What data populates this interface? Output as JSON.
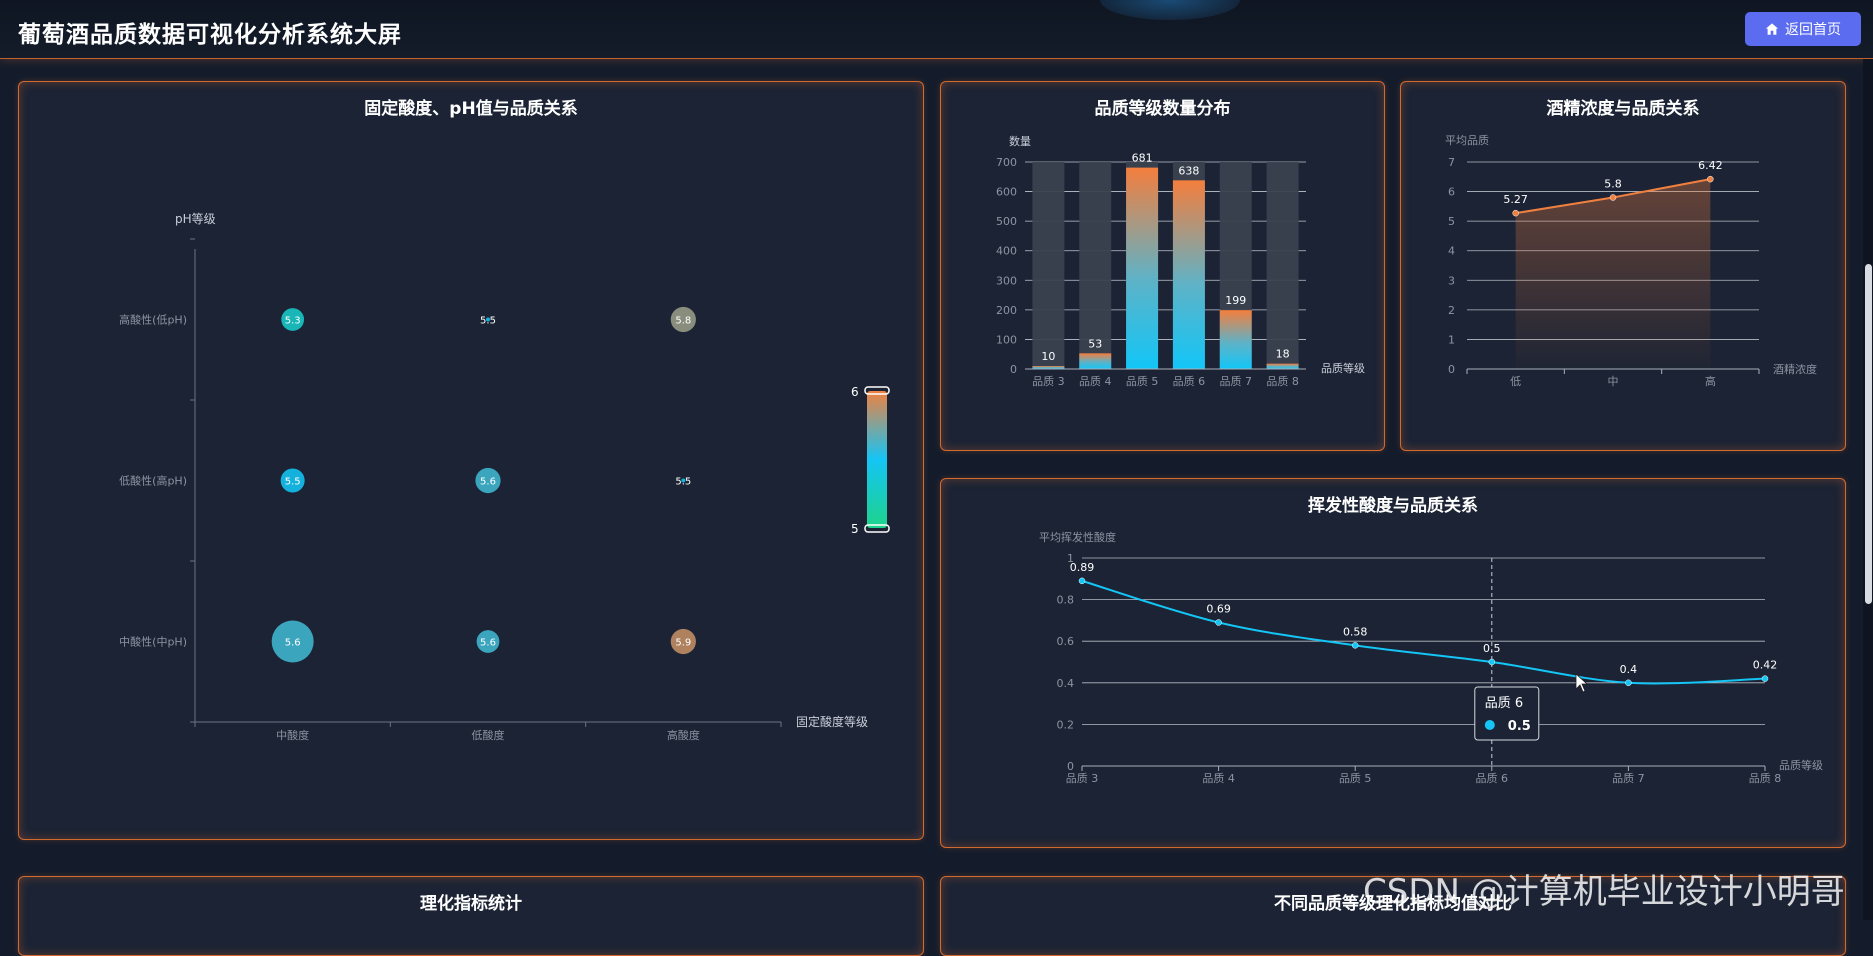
{
  "header": {
    "title": "葡萄酒品质数据可视化分析系统大屏",
    "home_button": "返回首页"
  },
  "panels": {
    "scatter": {
      "title": "固定酸度、pH值与品质关系"
    },
    "bar": {
      "title": "品质等级数量分布"
    },
    "alcohol": {
      "title": "酒精浓度与品质关系"
    },
    "volatile": {
      "title": "挥发性酸度与品质关系"
    },
    "stats": {
      "title": "理化指标统计"
    },
    "compare": {
      "title": "不同品质等级理化指标均值对比"
    }
  },
  "watermark": "CSDN @计算机毕业设计小明哥",
  "chart_data": [
    {
      "id": "scatter",
      "type": "scatter",
      "ylabel": "pH等级",
      "xlabel": "固定酸度等级",
      "x_categories": [
        "中酸度",
        "低酸度",
        "高酸度"
      ],
      "y_categories": [
        "中酸性(中pH)",
        "低酸性(高pH)",
        "高酸性(低pH)"
      ],
      "points": [
        {
          "x": "中酸度",
          "y": "高酸性(低pH)",
          "value": 5.3,
          "size": 2
        },
        {
          "x": "低酸度",
          "y": "高酸性(低pH)",
          "value": 5.5,
          "size": 0
        },
        {
          "x": "高酸度",
          "y": "高酸性(低pH)",
          "value": 5.8,
          "size": 3
        },
        {
          "x": "中酸度",
          "y": "低酸性(高pH)",
          "value": 5.5,
          "size": 2.5
        },
        {
          "x": "低酸度",
          "y": "低酸性(高pH)",
          "value": 5.6,
          "size": 3
        },
        {
          "x": "高酸度",
          "y": "低酸性(高pH)",
          "value": 5.5,
          "size": 0
        },
        {
          "x": "中酸度",
          "y": "中酸性(中pH)",
          "value": 5.6,
          "size": 10
        },
        {
          "x": "低酸度",
          "y": "中酸性(中pH)",
          "value": 5.6,
          "size": 2
        },
        {
          "x": "高酸度",
          "y": "中酸性(中pH)",
          "value": 5.9,
          "size": 3
        }
      ],
      "visual_map": {
        "min": 5,
        "max": 6,
        "min_label": "5",
        "max_label": "6",
        "colors": [
          "#1ed38a",
          "#14c5f5",
          "#f08040"
        ]
      }
    },
    {
      "id": "bar",
      "type": "bar",
      "ylabel": "数量",
      "xlabel": "品质等级",
      "categories": [
        "品质 3",
        "品质 4",
        "品质 5",
        "品质 6",
        "品质 7",
        "品质 8"
      ],
      "values": [
        10,
        53,
        681,
        638,
        199,
        18
      ],
      "ylim": [
        0,
        700
      ],
      "yticks": [
        0,
        100,
        200,
        300,
        400,
        500,
        600,
        700
      ],
      "grid": true
    },
    {
      "id": "alcohol",
      "type": "area",
      "ylabel": "平均品质",
      "xlabel": "酒精浓度",
      "categories": [
        "低",
        "中",
        "高"
      ],
      "values": [
        5.27,
        5.8,
        6.42
      ],
      "ylim": [
        0,
        7
      ],
      "yticks": [
        0,
        1,
        2,
        3,
        4,
        5,
        6,
        7
      ],
      "grid": true
    },
    {
      "id": "volatile",
      "type": "line",
      "ylabel": "平均挥发性酸度",
      "xlabel": "品质等级",
      "categories": [
        "品质 3",
        "品质 4",
        "品质 5",
        "品质 6",
        "品质 7",
        "品质 8"
      ],
      "values": [
        0.89,
        0.69,
        0.58,
        0.5,
        0.4,
        0.42
      ],
      "ylim": [
        0,
        1
      ],
      "yticks": [
        0,
        0.2,
        0.4,
        0.6,
        0.8,
        1
      ],
      "grid": true,
      "tooltip": {
        "category": "品质 6",
        "value": "0.5"
      }
    }
  ],
  "colors": {
    "accent_border": "#d2692f",
    "line_blue": "#14c5f5",
    "line_orange": "#f08040",
    "button": "#5b6cf0"
  }
}
